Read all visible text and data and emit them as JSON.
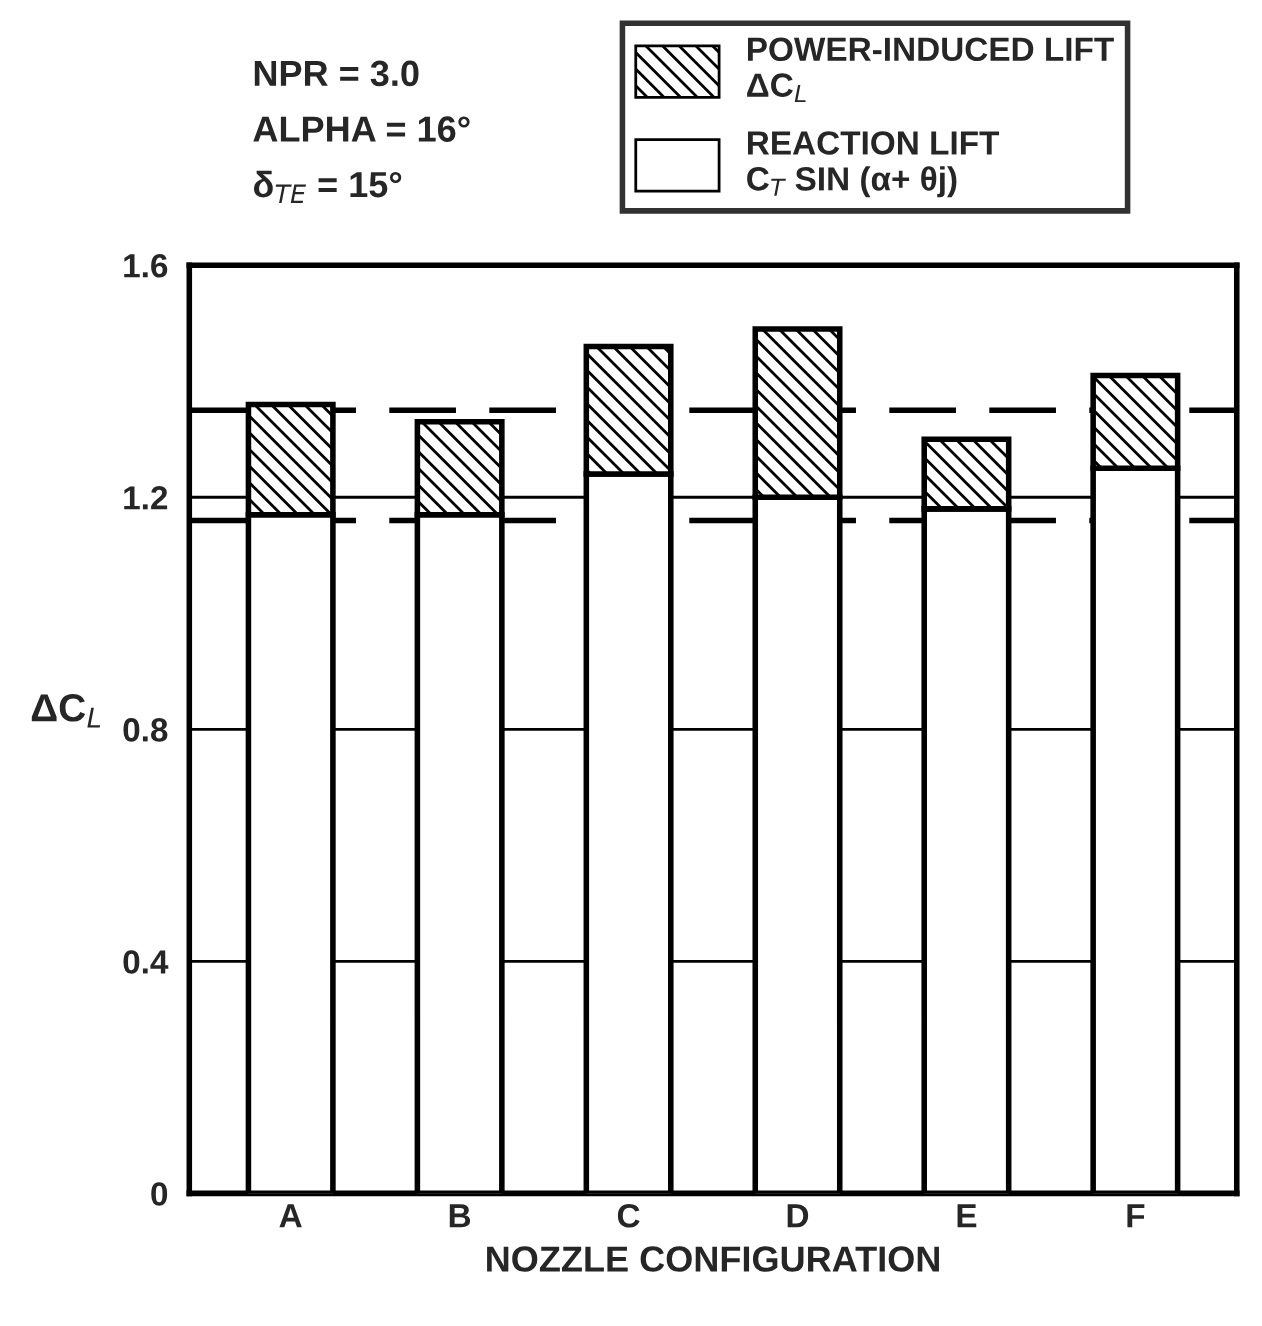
{
  "chart_data": {
    "type": "bar",
    "stacked": true,
    "xlabel": "NOZZLE CONFIGURATION",
    "ylabel": "ΔC$_{L}$",
    "categories": [
      "A",
      "B",
      "C",
      "D",
      "E",
      "F"
    ],
    "series": [
      {
        "name": "REACTION LIFT\nC$_{T}$ SIN (α+ θj)",
        "color": "#ffffff",
        "values": [
          1.17,
          1.17,
          1.24,
          1.2,
          1.18,
          1.25
        ]
      },
      {
        "name": "POWER-INDUCED LIFT\nΔC$_{L}$",
        "color": "#000000",
        "values": [
          0.19,
          0.16,
          0.22,
          0.29,
          0.12,
          0.16
        ]
      }
    ],
    "ylim": [
      0,
      1.6
    ],
    "yticks": [
      0,
      0.4,
      0.8,
      1.2,
      1.6
    ],
    "grid": "y",
    "legend": "top",
    "ref_lines": [
      {
        "axis": "y",
        "value": 1.35,
        "line_style": "dashed",
        "color": "#000000"
      },
      {
        "axis": "y",
        "value": 1.16,
        "line_style": "dashed",
        "color": "#000000"
      }
    ],
    "annotations": [
      "NPR = 3.0",
      "ALPHA = 16°",
      "δ$_{TE}$ = 15°"
    ]
  }
}
